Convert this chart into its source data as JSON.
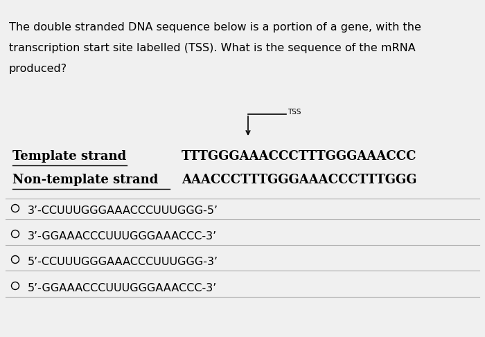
{
  "background_color": "#f0f0f0",
  "question_text_lines": [
    "The double stranded DNA sequence below is a portion of a gene, with the",
    "transcription start site labelled (TSS). What is the sequence of the mRNA",
    "produced?"
  ],
  "template_label": "Template strand",
  "template_sequence": "TTTGGGAAACCCTTTGGGAAACCC",
  "nontemplate_label": "Non-template strand",
  "nontemplate_sequence": "AAACCCTTTGGGAAACCCTTTGGG",
  "tss_label": "TSS",
  "options": [
    "3’-CCUUUGGGAAACCCUUUGGG-5’",
    "3’-GGAAACCCUUUGGGAAACCC-3’",
    "5’-CCUUUGGGAAACCCUUUGGG-3’",
    "5’-GGAAACCCUUUGGGAAACCC-3’"
  ],
  "font_size_question": 11.5,
  "font_size_strand": 13,
  "font_size_option": 11.5,
  "font_size_tss": 7.5
}
